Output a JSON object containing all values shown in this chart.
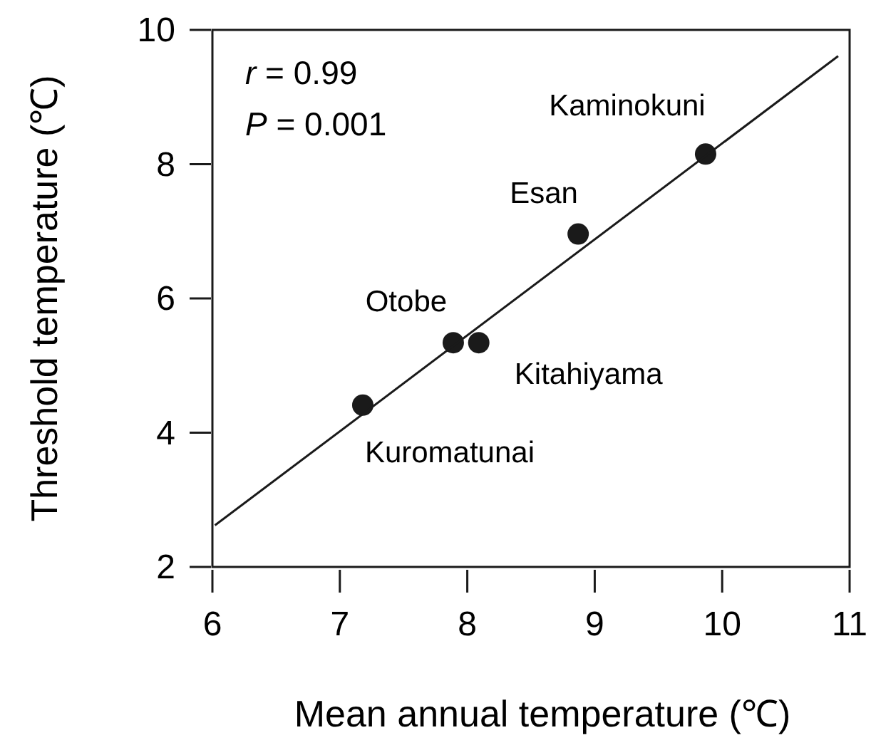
{
  "chart_data": {
    "type": "scatter",
    "xlabel": "Mean annual temperature (℃)",
    "ylabel": "Threshold temperature (℃)",
    "xlim": [
      6,
      11
    ],
    "ylim": [
      2,
      10
    ],
    "xticks": [
      6,
      7,
      8,
      9,
      10,
      11
    ],
    "yticks": [
      2,
      4,
      6,
      8,
      10
    ],
    "grid": false,
    "series": [
      {
        "color": "#1a1a1a",
        "marker": "circle",
        "x": [
          7.18,
          7.89,
          8.09,
          8.87,
          9.87
        ],
        "values": [
          4.41,
          5.34,
          5.34,
          6.96,
          8.15
        ]
      },
      {
        "type": "line",
        "color": "#1a1a1a",
        "marker": "none",
        "line_style": "solid",
        "x": [
          6.02,
          10.91
        ],
        "values": [
          2.62,
          9.61
        ]
      }
    ],
    "annotations": [
      "r = 0.99",
      "P = 0.001",
      {
        "text": "Kaminokuni",
        "x": 9.87,
        "y": 8.15
      },
      {
        "text": "Esan",
        "x": 8.87,
        "y": 6.96
      },
      {
        "text": "Otobe",
        "x": 7.89,
        "y": 5.34
      },
      {
        "text": "Kitahiyama",
        "x": 8.09,
        "y": 5.34
      },
      {
        "text": "Kuromatunai",
        "x": 7.18,
        "y": 4.41
      }
    ]
  }
}
